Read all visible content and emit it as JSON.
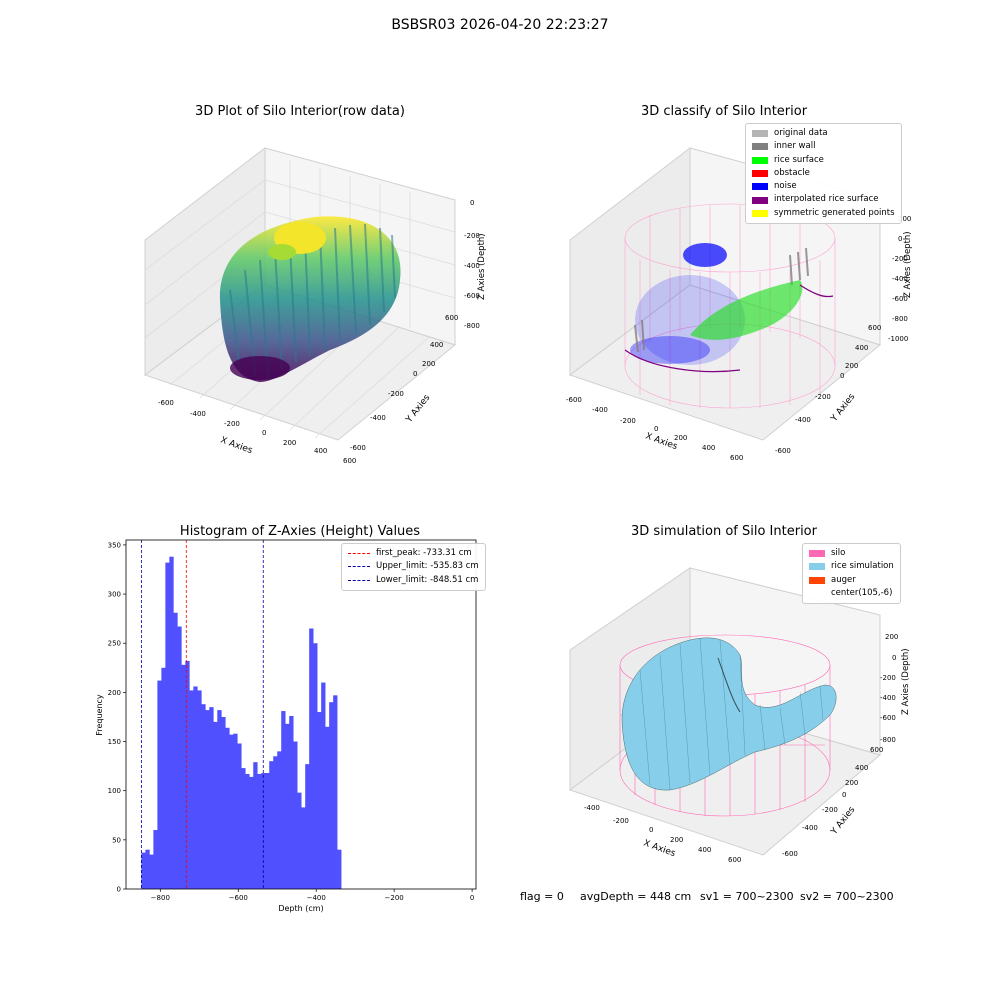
{
  "suptitle": "BSBSR03 2026-04-20 22:23:27",
  "plots": {
    "raw": {
      "title": "3D Plot of Silo Interior(row data)",
      "xlabel": "X Axies",
      "ylabel": "Y Axies",
      "zlabel": "Z Axies (Depth)",
      "xticks": [
        "-600",
        "-400",
        "-200",
        "0",
        "200",
        "400",
        "600"
      ],
      "yticks": [
        "-600",
        "-400",
        "-200",
        "0",
        "200",
        "400",
        "600"
      ],
      "zticks": [
        "0",
        "-200",
        "-400",
        "-600",
        "-800"
      ]
    },
    "classify": {
      "title": "3D classify of Silo Interior",
      "xlabel": "X Axies",
      "ylabel": "Y Axies",
      "zlabel": "Z Axies (Depth)",
      "xticks": [
        "-600",
        "-400",
        "-200",
        "0",
        "200",
        "400",
        "600"
      ],
      "yticks": [
        "-600",
        "-400",
        "-200",
        "0",
        "200",
        "400",
        "600"
      ],
      "zticks": [
        "200",
        "0",
        "-200",
        "-400",
        "-600",
        "-800",
        "-1000"
      ],
      "legend": [
        {
          "label": "original data",
          "color": "#b4b4b4"
        },
        {
          "label": "inner wall",
          "color": "#808080"
        },
        {
          "label": "rice surface",
          "color": "#00ff00"
        },
        {
          "label": "obstacle",
          "color": "#ff0000"
        },
        {
          "label": "noise",
          "color": "#0000ff"
        },
        {
          "label": "interpolated rice surface",
          "color": "#800080"
        },
        {
          "label": "symmetric generated points",
          "color": "#ffff00"
        }
      ]
    },
    "simulation": {
      "title": "3D simulation of Silo Interior",
      "xlabel": "X Axies",
      "ylabel": "Y Axies",
      "zlabel": "Z Axies (Depth)",
      "xticks": [
        "-400",
        "-200",
        "0",
        "200",
        "400",
        "600"
      ],
      "yticks": [
        "-600",
        "-400",
        "-200",
        "0",
        "200",
        "400",
        "600"
      ],
      "zticks": [
        "200",
        "0",
        "-200",
        "-400",
        "-600",
        "-800"
      ],
      "legend": [
        {
          "label": "silo",
          "color": "#ff69b4"
        },
        {
          "label": "rice simulation",
          "color": "#87ceeb"
        },
        {
          "label": "auger",
          "color": "#ff4500"
        },
        {
          "label": "center(105,-6)",
          "color": "#ffffff"
        }
      ]
    }
  },
  "chart_data": [
    {
      "type": "bar",
      "title": "Histogram of Z-Axies (Height) Values",
      "xlabel": "Depth (cm)",
      "ylabel": "Frequency",
      "xlim": [
        -888,
        10
      ],
      "ylim": [
        0,
        355
      ],
      "bar_color": "#5050ff",
      "bin_start": -848.5,
      "bin_width": 10.25,
      "values": [
        37,
        40,
        35,
        60,
        212,
        225,
        332,
        338,
        281,
        267,
        228,
        232,
        202,
        206,
        202,
        188,
        182,
        185,
        170,
        182,
        175,
        164,
        157,
        158,
        148,
        123,
        117,
        114,
        129,
        117,
        118,
        118,
        130,
        135,
        140,
        181,
        168,
        176,
        150,
        98,
        83,
        127,
        265,
        250,
        180,
        210,
        165,
        190,
        197,
        40
      ],
      "xticks": [
        -800,
        -600,
        -400,
        -200,
        0
      ],
      "yticks": [
        0,
        50,
        100,
        150,
        200,
        250,
        300,
        350
      ],
      "vlines": [
        {
          "label": "first_peak: -733.31 cm",
          "x": -733.31,
          "color": "#ff0000"
        },
        {
          "label": "Upper_limit: -535.83 cm",
          "x": -535.83,
          "color": "#0000aa"
        },
        {
          "label": "Lower_limit: -848.51 cm",
          "x": -848.51,
          "color": "#0000aa"
        }
      ]
    }
  ],
  "status": {
    "flag": "flag = 0",
    "avg": "avgDepth = 448 cm",
    "sv1": "sv1 = 700~2300",
    "sv2": "sv2 = 700~2300"
  }
}
